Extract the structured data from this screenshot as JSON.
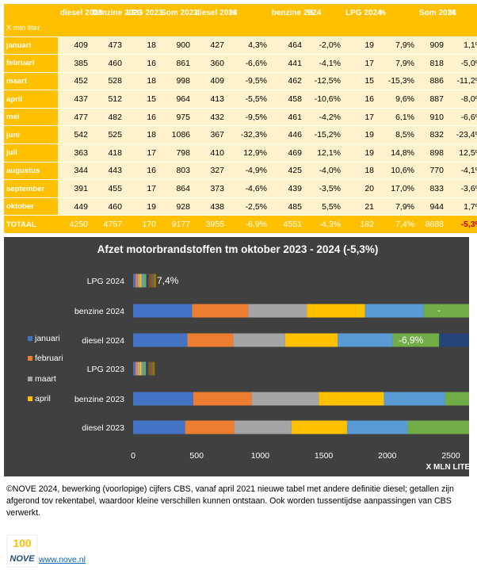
{
  "table": {
    "unit_label": "X mln liter",
    "headers": [
      "diesel 2023",
      "benzine 2023",
      "LPG 2023",
      "Som 2023",
      "diesel 2024",
      "%",
      "benzine 2024",
      "%",
      "LPG 2024",
      "%",
      "Som 2024",
      "%"
    ],
    "rows": [
      {
        "month": "januari",
        "cells": [
          "409",
          "473",
          "18",
          "900",
          "427",
          "4,3%",
          "464",
          "-2,0%",
          "19",
          "7,9%",
          "909",
          "1,1%"
        ]
      },
      {
        "month": "februari",
        "cells": [
          "385",
          "460",
          "16",
          "861",
          "360",
          "-6,6%",
          "441",
          "-4,1%",
          "17",
          "7,9%",
          "818",
          "-5,0%"
        ]
      },
      {
        "month": "maart",
        "cells": [
          "452",
          "528",
          "18",
          "998",
          "409",
          "-9,5%",
          "462",
          "-12,5%",
          "15",
          "-15,3%",
          "886",
          "-11,2%"
        ]
      },
      {
        "month": "april",
        "cells": [
          "437",
          "512",
          "15",
          "964",
          "413",
          "-5,5%",
          "458",
          "-10,6%",
          "16",
          "9,6%",
          "887",
          "-8,0%"
        ]
      },
      {
        "month": "mei",
        "cells": [
          "477",
          "482",
          "16",
          "975",
          "432",
          "-9,5%",
          "461",
          "-4,2%",
          "17",
          "6,1%",
          "910",
          "-6,6%"
        ]
      },
      {
        "month": "juni",
        "cells": [
          "542",
          "525",
          "18",
          "1086",
          "367",
          "-32,3%",
          "446",
          "-15,2%",
          "19",
          "8,5%",
          "832",
          "-23,4%"
        ]
      },
      {
        "month": "juli",
        "cells": [
          "363",
          "418",
          "17",
          "798",
          "410",
          "12,9%",
          "469",
          "12,1%",
          "19",
          "14,8%",
          "898",
          "12,5%"
        ]
      },
      {
        "month": "augustus",
        "cells": [
          "344",
          "443",
          "16",
          "803",
          "327",
          "-4,9%",
          "425",
          "-4,0%",
          "18",
          "10,6%",
          "770",
          "-4,1%"
        ]
      },
      {
        "month": "september",
        "cells": [
          "391",
          "455",
          "17",
          "864",
          "373",
          "-4,6%",
          "439",
          "-3,5%",
          "20",
          "17,0%",
          "833",
          "-3,6%"
        ]
      },
      {
        "month": "oktober",
        "cells": [
          "449",
          "460",
          "19",
          "928",
          "438",
          "-2,5%",
          "485",
          "5,5%",
          "21",
          "7,9%",
          "944",
          "1,7%"
        ]
      }
    ],
    "total": {
      "month": "TOTAAL",
      "cells": [
        "4250",
        "4757",
        "170",
        "9177",
        "3955",
        "-6,9%",
        "4551",
        "-4,3%",
        "182",
        "7,4%",
        "8688",
        "-5,3%"
      ]
    }
  },
  "chart_data": {
    "type": "bar",
    "orientation": "horizontal",
    "stacked": true,
    "title": "Afzet motorbrandstoffen tm oktober 2023 - 2024 (-5,3%)",
    "xlabel": "X MLN LITER",
    "ylabel": "",
    "xlim": [
      0,
      5000
    ],
    "xticks": [
      0,
      500,
      1000,
      1500,
      2000,
      2500,
      3000,
      3500,
      4000,
      4500,
      5000
    ],
    "grid": false,
    "legend_position": "left",
    "categories": [
      "diesel 2023",
      "benzine 2023",
      "LPG 2023",
      "diesel 2024",
      "benzine 2024",
      "LPG 2024"
    ],
    "series": [
      {
        "name": "januari",
        "color": "#4472c4",
        "values": [
          409,
          473,
          18,
          427,
          464,
          19
        ]
      },
      {
        "name": "februari",
        "color": "#ed7d31",
        "values": [
          385,
          460,
          16,
          360,
          441,
          17
        ]
      },
      {
        "name": "maart",
        "color": "#a5a5a5",
        "values": [
          452,
          528,
          18,
          409,
          462,
          15
        ]
      },
      {
        "name": "april",
        "color": "#ffc000",
        "values": [
          437,
          512,
          15,
          413,
          458,
          16
        ]
      },
      {
        "name": "mei",
        "color": "#5b9bd5",
        "values": [
          477,
          482,
          16,
          432,
          461,
          17
        ]
      },
      {
        "name": "juni",
        "color": "#70ad47",
        "values": [
          542,
          525,
          18,
          367,
          446,
          19
        ]
      },
      {
        "name": "juli",
        "color": "#264478",
        "values": [
          363,
          418,
          17,
          410,
          469,
          19
        ]
      },
      {
        "name": "augustus",
        "color": "#9e480e",
        "values": [
          344,
          443,
          16,
          327,
          425,
          18
        ]
      },
      {
        "name": "september",
        "color": "#636363",
        "values": [
          391,
          455,
          17,
          373,
          439,
          20
        ]
      },
      {
        "name": "oktober",
        "color": "#997300",
        "values": [
          449,
          460,
          19,
          438,
          485,
          21
        ]
      }
    ],
    "legend_visible": [
      "januari",
      "februari",
      "maart",
      "april"
    ],
    "annotations": [
      {
        "category": "LPG 2024",
        "text": "7,4%"
      },
      {
        "category": "benzine 2024",
        "text": "-"
      },
      {
        "category": "diesel 2024",
        "text": "-6,9%"
      }
    ]
  },
  "footnote": "©NOVE 2024, bewerking (voorlopige) cijfers CBS, vanaf april 2021 nieuwe tabel met andere definitie diesel; getallen zijn afgerond tov rekentabel, waardoor kleine verschillen kunnen ontstaan. Ook worden tussentijdse aanpassingen van CBS verwerkt.",
  "logo": {
    "text_top": "100",
    "text_bottom": "NOVE"
  },
  "link": "www.nove.nl"
}
